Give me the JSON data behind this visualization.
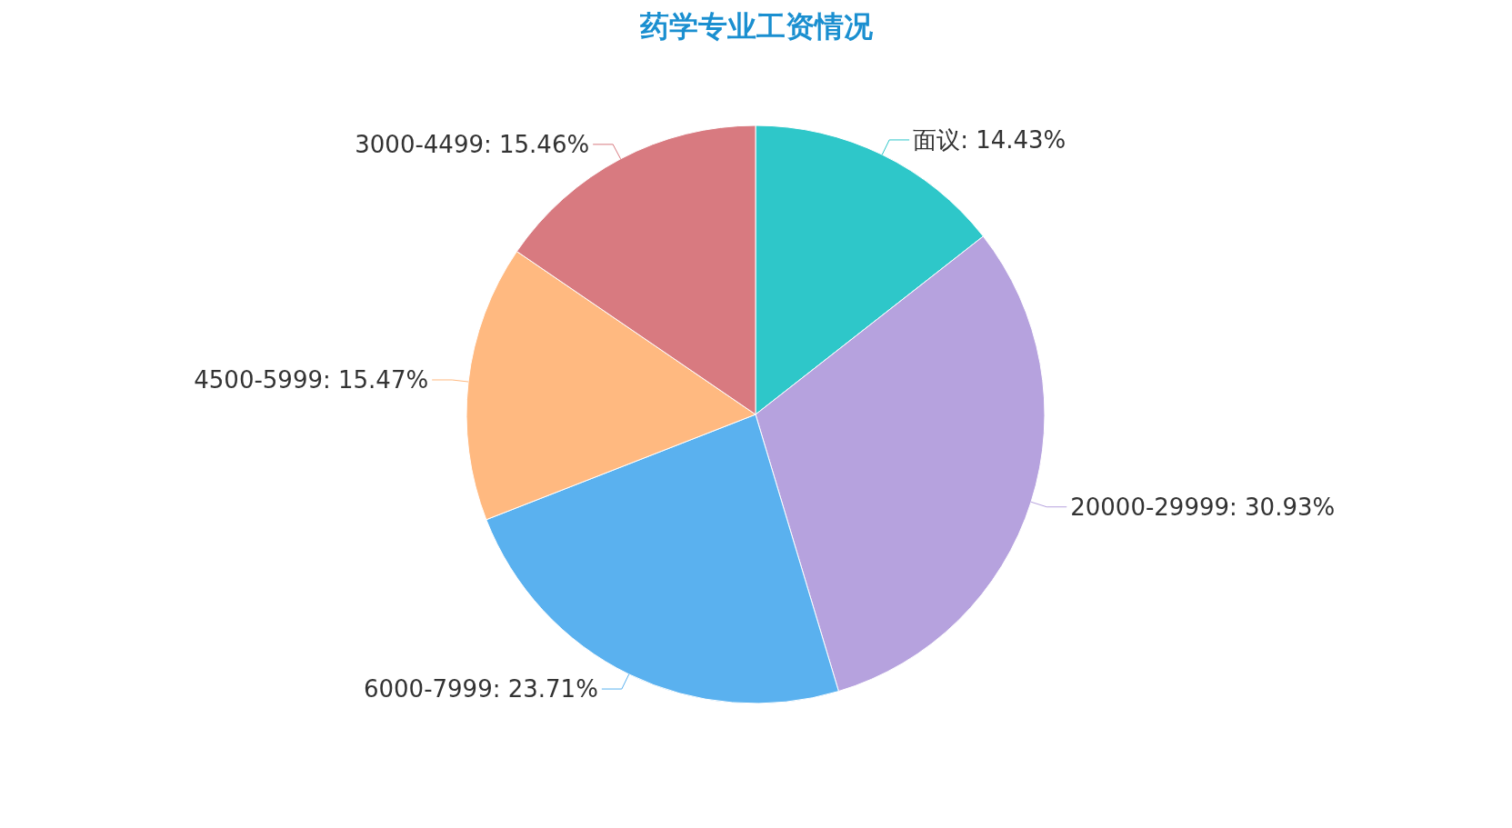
{
  "chart_data": {
    "type": "pie",
    "title": "药学专业工资情况",
    "categories": [
      "面议",
      "20000-29999",
      "6000-7999",
      "4500-5999",
      "3000-4499"
    ],
    "values": [
      14.43,
      30.93,
      23.71,
      15.47,
      15.46
    ],
    "value_labels": [
      "14.43%",
      "30.93%",
      "23.71%",
      "15.47%",
      "15.46%"
    ],
    "colors": [
      "#2ec7c9",
      "#b6a2de",
      "#5ab1ef",
      "#ffb980",
      "#d87a80"
    ]
  }
}
